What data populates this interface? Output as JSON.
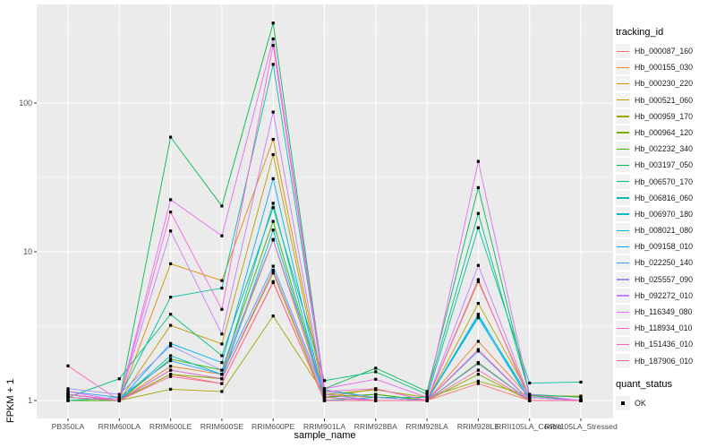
{
  "chart_data": {
    "type": "line",
    "xlabel": "sample_name",
    "ylabel": "FPKM + 1",
    "y_scale": "log10",
    "y_ticks": [
      1,
      10,
      100
    ],
    "ylim": [
      0.76,
      460
    ],
    "grid": "on",
    "legend_position": "right",
    "legend_title": "tracking_id",
    "quant_legend": {
      "title": "quant_status",
      "item": "OK"
    },
    "panel_bg": "#EBEBEB",
    "grid_color": "#FFFFFF",
    "tick_text_color": "#4D4D4D",
    "point_color": "#000000",
    "x_categories": [
      "PB350LA",
      "RRIM600LA",
      "RRIM600LE",
      "RRIM600SE",
      "RRIM600PE",
      "RRIM901LA",
      "RRIM928BA",
      "RRIM928LA",
      "RRIM928LE",
      "RRII105LA_Control",
      "RRII105LA_Stressed"
    ],
    "series": [
      {
        "name": "Hb_000087_160",
        "color": "#F8766D",
        "values": [
          1.05,
          1.0,
          1.5,
          1.3,
          6.2,
          1.0,
          1.0,
          1.0,
          1.3,
          1.0,
          1.0
        ]
      },
      {
        "name": "Hb_000155_030",
        "color": "#EA8331",
        "values": [
          1.1,
          1.0,
          1.7,
          1.5,
          12.0,
          1.05,
          1.1,
          1.0,
          2.5,
          1.05,
          1.0
        ]
      },
      {
        "name": "Hb_000230_220",
        "color": "#D89000",
        "values": [
          1.1,
          1.0,
          8.3,
          6.4,
          57.0,
          1.1,
          1.05,
          1.0,
          6.3,
          1.05,
          1.0
        ]
      },
      {
        "name": "Hb_000521_060",
        "color": "#C09B00",
        "values": [
          1.05,
          1.0,
          3.2,
          2.4,
          45.0,
          1.05,
          1.2,
          1.0,
          4.5,
          1.08,
          1.07
        ]
      },
      {
        "name": "Hb_000959_170",
        "color": "#A3A500",
        "values": [
          1.0,
          1.0,
          1.19,
          1.15,
          3.7,
          1.1,
          1.18,
          1.05,
          1.35,
          1.08,
          1.06
        ]
      },
      {
        "name": "Hb_000964_120",
        "color": "#7CAE00",
        "values": [
          1.0,
          1.0,
          1.5,
          1.4,
          7.2,
          1.0,
          1.05,
          1.0,
          1.5,
          1.0,
          1.0
        ]
      },
      {
        "name": "Hb_002232_340",
        "color": "#39B600",
        "values": [
          1.0,
          1.0,
          1.9,
          1.6,
          16.0,
          1.05,
          1.1,
          1.0,
          1.8,
          1.0,
          1.0
        ]
      },
      {
        "name": "Hb_003197_050",
        "color": "#00BB4E",
        "values": [
          1.1,
          1.0,
          59.0,
          20.3,
          345.0,
          1.2,
          1.65,
          1.15,
          27.0,
          1.08,
          1.0
        ]
      },
      {
        "name": "Hb_006570_170",
        "color": "#00BF7D",
        "values": [
          1.05,
          1.4,
          3.8,
          2.0,
          19.8,
          1.36,
          1.56,
          1.1,
          18.1,
          1.1,
          1.05
        ]
      },
      {
        "name": "Hb_006816_060",
        "color": "#00C1A3",
        "values": [
          1.0,
          1.05,
          4.95,
          5.7,
          182.0,
          1.18,
          1.05,
          1.05,
          14.5,
          1.31,
          1.33
        ]
      },
      {
        "name": "Hb_006970_180",
        "color": "#00BFC4",
        "values": [
          1.05,
          1.0,
          2.0,
          1.5,
          21.2,
          1.0,
          1.05,
          1.0,
          3.7,
          1.05,
          1.0
        ]
      },
      {
        "name": "Hb_008021_080",
        "color": "#00BAE0",
        "values": [
          1.1,
          1.0,
          1.6,
          1.4,
          14.0,
          1.05,
          1.0,
          1.0,
          3.8,
          1.0,
          1.0
        ]
      },
      {
        "name": "Hb_009158_010",
        "color": "#00B0F6",
        "values": [
          1.05,
          1.0,
          2.42,
          1.8,
          31.0,
          1.0,
          1.0,
          1.0,
          3.6,
          1.0,
          1.0
        ]
      },
      {
        "name": "Hb_022250_140",
        "color": "#35A2FF",
        "values": [
          1.15,
          1.05,
          1.85,
          1.5,
          8.0,
          1.1,
          1.0,
          1.0,
          2.15,
          1.0,
          1.0
        ]
      },
      {
        "name": "Hb_025557_090",
        "color": "#9590FF",
        "values": [
          1.2,
          1.1,
          2.33,
          1.6,
          12.1,
          1.15,
          1.05,
          1.0,
          1.77,
          1.0,
          1.0
        ]
      },
      {
        "name": "Hb_092272_010",
        "color": "#C77CFF",
        "values": [
          1.1,
          1.0,
          13.8,
          2.8,
          87.0,
          1.1,
          1.0,
          1.0,
          8.1,
          1.05,
          1.0
        ]
      },
      {
        "name": "Hb_116349_080",
        "color": "#E76BF3",
        "values": [
          1.15,
          1.0,
          22.4,
          12.8,
          270.0,
          1.2,
          1.39,
          1.05,
          40.5,
          1.1,
          1.0
        ]
      },
      {
        "name": "Hb_118934_010",
        "color": "#FA62DB",
        "values": [
          1.1,
          1.0,
          18.5,
          4.1,
          244.0,
          1.15,
          1.2,
          1.0,
          6.5,
          1.0,
          1.0
        ]
      },
      {
        "name": "Hb_151436_010",
        "color": "#FF62BC",
        "values": [
          1.71,
          1.0,
          1.6,
          1.4,
          7.5,
          1.05,
          1.0,
          1.0,
          2.2,
          1.0,
          1.0
        ]
      },
      {
        "name": "Hb_187906_010",
        "color": "#FF6A98",
        "values": [
          1.05,
          1.0,
          1.45,
          1.3,
          6.3,
          1.0,
          1.0,
          1.0,
          1.6,
          1.0,
          1.0
        ]
      }
    ]
  }
}
